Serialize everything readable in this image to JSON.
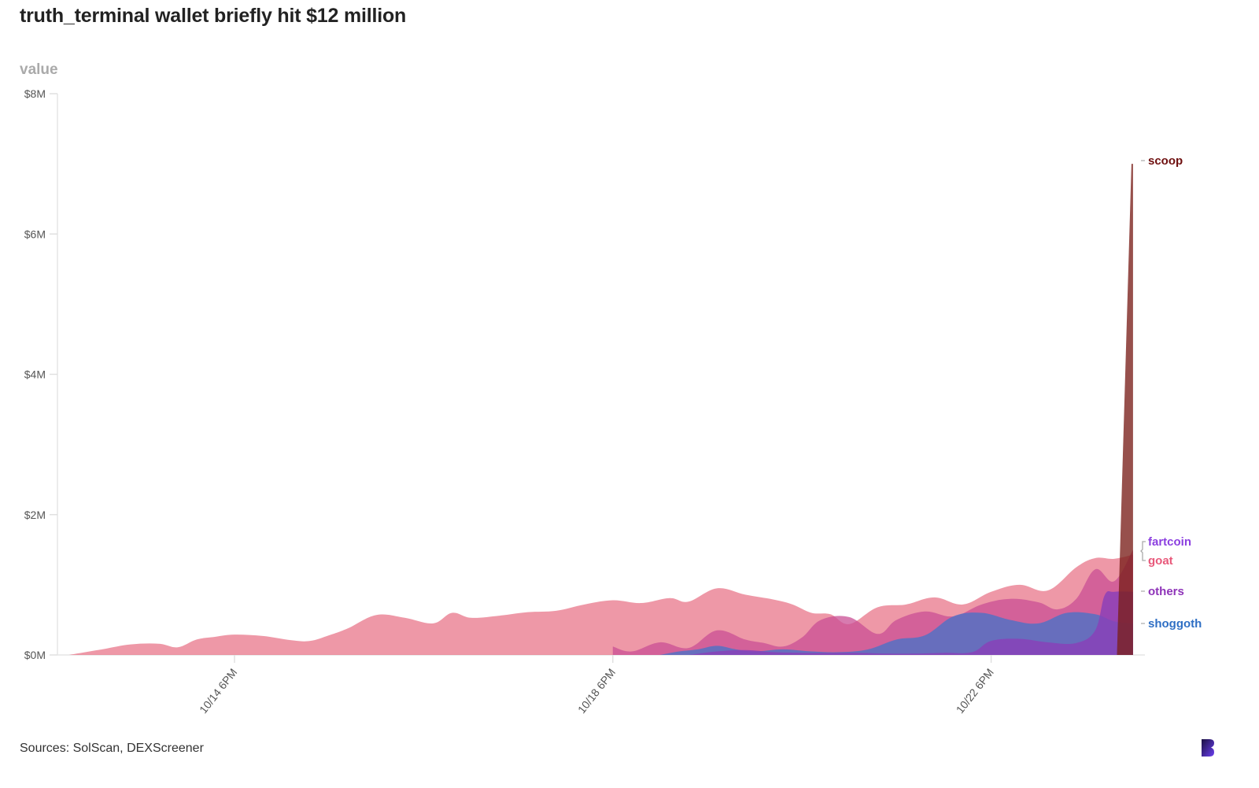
{
  "header": {
    "title": "truth_terminal wallet briefly hit $12 million",
    "y_axis_title": "value"
  },
  "footer": {
    "source": "Sources: SolScan, DEXScreener",
    "logo_icon": "brand-b-logo"
  },
  "colors": {
    "goat": "#e8758a",
    "fartcoin": "#c94f94",
    "shoggoth": "#4f72c4",
    "others": "#8a3fb8",
    "scoop": "#7a1f1a",
    "goat_label": "#e8587a",
    "fartcoin_label": "#8b3fe0",
    "others_label": "#8e33b8",
    "shoggoth_label": "#2f6fc4",
    "scoop_label": "#6e0f0f"
  },
  "chart_data": {
    "type": "area",
    "title": "truth_terminal wallet briefly hit $12 million",
    "xlabel": "",
    "ylabel": "value",
    "stacked": false,
    "ylim": [
      0,
      8
    ],
    "y_unit": "$M",
    "y_ticks": [
      0,
      2,
      4,
      6,
      8
    ],
    "y_tick_labels": [
      "$0M",
      "$2M",
      "$4M",
      "$6M",
      "$8M"
    ],
    "x_unit": "days since 10/14 6PM",
    "xlim": [
      -1.75,
      9.5
    ],
    "x_ticks": [
      0,
      4,
      8
    ],
    "x_tick_labels": [
      "10/14 6PM",
      "10/18 6PM",
      "10/22 6PM"
    ],
    "grid": false,
    "legend": "right (inline labels at series end)",
    "series": [
      {
        "name": "goat",
        "x": [
          -1.75,
          -1.4,
          -1.1,
          -0.8,
          -0.6,
          -0.4,
          -0.2,
          0.0,
          0.3,
          0.6,
          0.8,
          1.0,
          1.2,
          1.5,
          1.8,
          2.1,
          2.3,
          2.5,
          2.8,
          3.1,
          3.4,
          3.7,
          4.0,
          4.3,
          4.6,
          4.8,
          5.1,
          5.4,
          5.7,
          5.9,
          6.1,
          6.3,
          6.5,
          6.8,
          7.1,
          7.4,
          7.7,
          8.0,
          8.3,
          8.6,
          8.9,
          9.1,
          9.3,
          9.5
        ],
        "values": [
          0.0,
          0.08,
          0.15,
          0.16,
          0.11,
          0.22,
          0.26,
          0.29,
          0.27,
          0.21,
          0.2,
          0.28,
          0.38,
          0.57,
          0.53,
          0.45,
          0.6,
          0.53,
          0.56,
          0.61,
          0.63,
          0.72,
          0.78,
          0.74,
          0.81,
          0.76,
          0.95,
          0.86,
          0.79,
          0.72,
          0.6,
          0.58,
          0.44,
          0.68,
          0.72,
          0.82,
          0.72,
          0.9,
          1.0,
          0.92,
          1.25,
          1.38,
          1.37,
          1.43
        ]
      },
      {
        "name": "fartcoin",
        "x": [
          4.0,
          4.2,
          4.5,
          4.8,
          5.1,
          5.4,
          5.6,
          5.8,
          6.0,
          6.2,
          6.5,
          6.8,
          7.0,
          7.3,
          7.6,
          7.9,
          8.2,
          8.5,
          8.7,
          8.9,
          9.1,
          9.3,
          9.5
        ],
        "values": [
          0.12,
          0.05,
          0.18,
          0.1,
          0.35,
          0.22,
          0.17,
          0.12,
          0.25,
          0.5,
          0.54,
          0.3,
          0.5,
          0.62,
          0.55,
          0.72,
          0.8,
          0.75,
          0.65,
          0.8,
          1.22,
          1.05,
          1.5
        ]
      },
      {
        "name": "shoggoth",
        "x": [
          4.5,
          4.7,
          4.9,
          5.1,
          5.3,
          5.5,
          5.8,
          6.1,
          6.4,
          6.7,
          7.0,
          7.3,
          7.6,
          7.9,
          8.2,
          8.5,
          8.8,
          9.1,
          9.3,
          9.5
        ],
        "values": [
          0.0,
          0.05,
          0.08,
          0.13,
          0.08,
          0.05,
          0.08,
          0.05,
          0.04,
          0.08,
          0.22,
          0.28,
          0.55,
          0.6,
          0.5,
          0.45,
          0.6,
          0.58,
          0.48,
          0.45
        ]
      },
      {
        "name": "others",
        "x": [
          4.8,
          5.1,
          5.4,
          5.7,
          6.0,
          6.3,
          6.6,
          6.9,
          7.2,
          7.5,
          7.8,
          8.0,
          8.3,
          8.6,
          8.9,
          9.1,
          9.2,
          9.3,
          9.5
        ],
        "values": [
          0.0,
          0.05,
          0.07,
          0.04,
          0.03,
          0.03,
          0.03,
          0.02,
          0.02,
          0.03,
          0.04,
          0.2,
          0.23,
          0.18,
          0.17,
          0.35,
          0.85,
          0.9,
          0.9
        ]
      },
      {
        "name": "scoop",
        "x": [
          9.35,
          9.5
        ],
        "values": [
          0.0,
          7.0
        ]
      }
    ],
    "series_end_labels": [
      "scoop",
      "fartcoin",
      "goat",
      "others",
      "shoggoth"
    ]
  }
}
